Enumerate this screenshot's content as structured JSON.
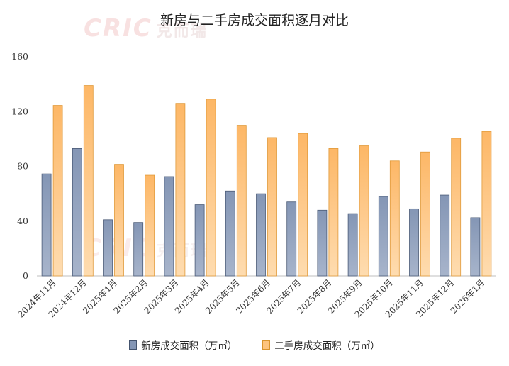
{
  "chart_data": {
    "type": "bar",
    "title": "新房与二手房成交面积逐月对比",
    "categories": [
      "2024年11月",
      "2024年12月",
      "2025年1月",
      "2025年2月",
      "2025年3月",
      "2025年4月",
      "2025年5月",
      "2025年6月",
      "2025年7月",
      "2025年8月",
      "2025年9月",
      "2025年10月",
      "2025年11月",
      "2025年12月",
      "2026年1月"
    ],
    "series": [
      {
        "name": "新房成交面积（万㎡）",
        "color": "#7f93b3",
        "values": [
          74.5,
          93,
          41,
          39,
          72.5,
          52,
          62,
          60,
          54,
          48,
          45.5,
          58,
          49,
          59,
          42.5
        ]
      },
      {
        "name": "二手房成交面积（万㎡）",
        "color": "#fcc37c",
        "values": [
          124.5,
          139,
          81.5,
          73.5,
          126,
          129,
          110,
          101,
          104,
          93,
          95,
          84,
          90.5,
          100.5,
          105.5
        ]
      }
    ],
    "ylim": [
      0,
      160
    ],
    "yticks": [
      "0",
      "40",
      "80",
      "120",
      "160"
    ],
    "legend_position": "bottom",
    "grid": false
  },
  "watermark": {
    "latin": "CRIC",
    "cn": "克而瑞"
  }
}
